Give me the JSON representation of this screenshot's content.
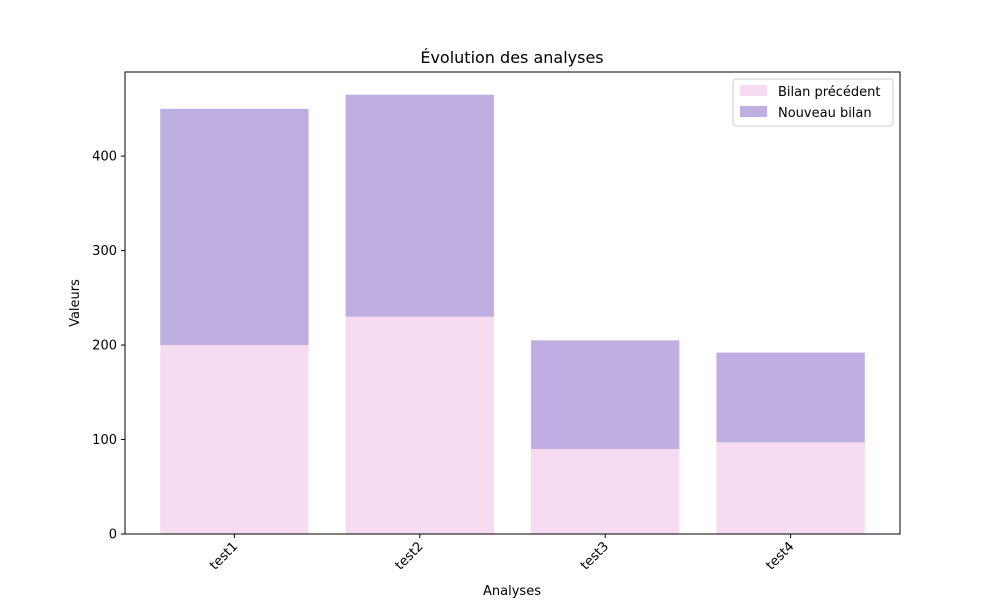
{
  "chart_data": {
    "type": "bar",
    "stacked": true,
    "title": "Évolution des analyses",
    "xlabel": "Analyses",
    "ylabel": "Valeurs",
    "categories": [
      "test1",
      "test2",
      "test3",
      "test4"
    ],
    "series": [
      {
        "name": "Bilan précédent",
        "values": [
          200,
          230,
          90,
          97
        ],
        "color": "#f7dbf0"
      },
      {
        "name": "Nouveau bilan",
        "values": [
          250,
          235,
          115,
          95
        ],
        "color": "#bfaee2"
      }
    ],
    "ylim": [
      0,
      489
    ],
    "yticks": [
      0,
      100,
      200,
      300,
      400
    ],
    "grid": false,
    "legend_position": "top-right"
  }
}
